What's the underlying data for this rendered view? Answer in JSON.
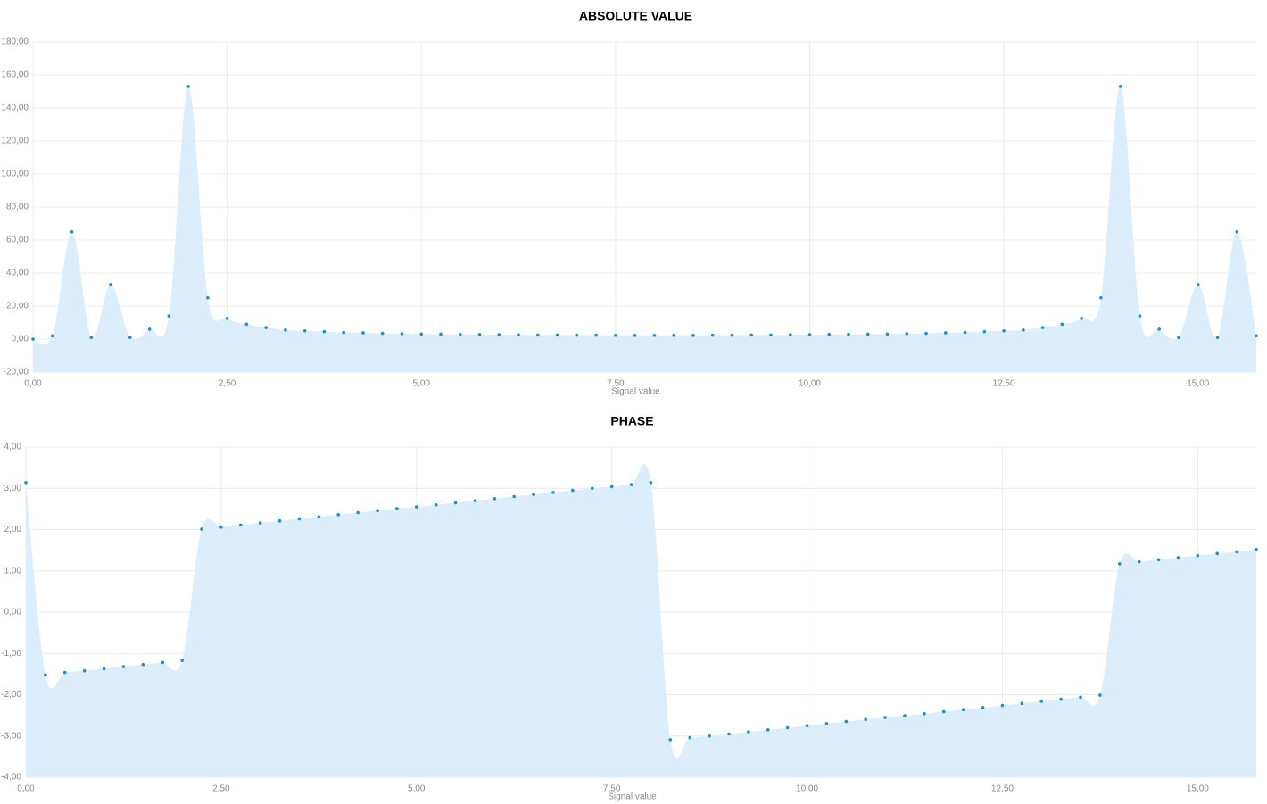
{
  "chart_data": [
    {
      "type": "area",
      "title": "ABSOLUTE VALUE",
      "xlabel": "Signal value",
      "x": [
        0,
        0.25,
        0.5,
        0.75,
        1,
        1.25,
        1.5,
        1.75,
        2,
        2.25,
        2.5,
        2.75,
        3,
        3.25,
        3.5,
        3.75,
        4,
        4.25,
        4.5,
        4.75,
        5,
        5.25,
        5.5,
        5.75,
        6,
        6.25,
        6.5,
        6.75,
        7,
        7.25,
        7.5,
        7.75,
        8,
        8.25,
        8.5,
        8.75,
        9,
        9.25,
        9.5,
        9.75,
        10,
        10.25,
        10.5,
        10.75,
        11,
        11.25,
        11.5,
        11.75,
        12,
        12.25,
        12.5,
        12.75,
        13,
        13.25,
        13.5,
        13.75,
        14,
        14.25,
        14.5,
        14.75,
        15,
        15.25,
        15.5,
        15.75
      ],
      "values": [
        0,
        2,
        65,
        1,
        33,
        1,
        6,
        14,
        153,
        25,
        12.5,
        9,
        7,
        5.5,
        5,
        4.5,
        4,
        3.8,
        3.5,
        3.3,
        3.1,
        3,
        2.9,
        2.8,
        2.7,
        2.6,
        2.5,
        2.5,
        2.4,
        2.4,
        2.3,
        2.3,
        2.3,
        2.3,
        2.3,
        2.4,
        2.4,
        2.5,
        2.5,
        2.6,
        2.7,
        2.8,
        2.9,
        3,
        3.1,
        3.3,
        3.5,
        3.8,
        4,
        4.5,
        5,
        5.5,
        7,
        9,
        12.5,
        25,
        153,
        14,
        6,
        1,
        33,
        1,
        65,
        2
      ],
      "color": "#1a8fd6",
      "fill": "#dcedfc",
      "grid": true,
      "xlim": [
        0,
        15.75
      ],
      "xticks": [
        {
          "value": 0,
          "label": "0,00"
        },
        {
          "value": 2.5,
          "label": "2,50"
        },
        {
          "value": 5,
          "label": "5,00"
        },
        {
          "value": 7.5,
          "label": "7,50"
        },
        {
          "value": 10,
          "label": "10,00"
        },
        {
          "value": 12.5,
          "label": "12,50"
        },
        {
          "value": 15,
          "label": "15,00"
        }
      ],
      "ylim": [
        -20,
        180
      ],
      "yticks": [
        {
          "value": -20,
          "label": "-20,00"
        },
        {
          "value": 0,
          "label": "0,00"
        },
        {
          "value": 20,
          "label": "20,00"
        },
        {
          "value": 40,
          "label": "40,00"
        },
        {
          "value": 60,
          "label": "60,00"
        },
        {
          "value": 80,
          "label": "80,00"
        },
        {
          "value": 100,
          "label": "100,00"
        },
        {
          "value": 120,
          "label": "120,00"
        },
        {
          "value": 140,
          "label": "140,00"
        },
        {
          "value": 160,
          "label": "160,00"
        },
        {
          "value": 180,
          "label": "180,00"
        }
      ]
    },
    {
      "type": "area",
      "title": "PHASE",
      "xlabel": "Signal value",
      "x": [
        0,
        0.25,
        0.5,
        0.75,
        1,
        1.25,
        1.5,
        1.75,
        2,
        2.25,
        2.5,
        2.75,
        3,
        3.25,
        3.5,
        3.75,
        4,
        4.25,
        4.5,
        4.75,
        5,
        5.25,
        5.5,
        5.75,
        6,
        6.25,
        6.5,
        6.75,
        7,
        7.25,
        7.5,
        7.75,
        8,
        8.25,
        8.5,
        8.75,
        9,
        9.25,
        9.5,
        9.75,
        10,
        10.25,
        10.5,
        10.75,
        11,
        11.25,
        11.5,
        11.75,
        12,
        12.25,
        12.5,
        12.75,
        13,
        13.25,
        13.5,
        13.75,
        14,
        14.25,
        14.5,
        14.75,
        15,
        15.25,
        15.5,
        15.75
      ],
      "values": [
        3.14,
        -1.52,
        -1.46,
        -1.42,
        -1.37,
        -1.32,
        -1.27,
        -1.22,
        -1.17,
        2.01,
        2.06,
        2.11,
        2.16,
        2.21,
        2.26,
        2.31,
        2.36,
        2.41,
        2.46,
        2.51,
        2.55,
        2.6,
        2.65,
        2.7,
        2.75,
        2.8,
        2.85,
        2.9,
        2.95,
        3,
        3.04,
        3.09,
        3.14,
        -3.09,
        -3.04,
        -3,
        -2.95,
        -2.9,
        -2.85,
        -2.8,
        -2.75,
        -2.7,
        -2.65,
        -2.6,
        -2.55,
        -2.51,
        -2.46,
        -2.41,
        -2.36,
        -2.31,
        -2.26,
        -2.21,
        -2.16,
        -2.11,
        -2.06,
        -2.01,
        1.17,
        1.22,
        1.27,
        1.32,
        1.37,
        1.42,
        1.46,
        1.52
      ],
      "color": "#1a8fd6",
      "fill": "#dcedfc",
      "grid": true,
      "xlim": [
        0,
        15.75
      ],
      "xticks": [
        {
          "value": 0,
          "label": "0,00"
        },
        {
          "value": 2.5,
          "label": "2,50"
        },
        {
          "value": 5,
          "label": "5,00"
        },
        {
          "value": 7.5,
          "label": "7,50"
        },
        {
          "value": 10,
          "label": "10,00"
        },
        {
          "value": 12.5,
          "label": "12,50"
        },
        {
          "value": 15,
          "label": "15,00"
        }
      ],
      "ylim": [
        -4,
        4
      ],
      "yticks": [
        {
          "value": -4,
          "label": "-4,00"
        },
        {
          "value": -3,
          "label": "-3,00"
        },
        {
          "value": -2,
          "label": "-2,00"
        },
        {
          "value": -1,
          "label": "-1,00"
        },
        {
          "value": 0,
          "label": "0,00"
        },
        {
          "value": 1,
          "label": "1,00"
        },
        {
          "value": 2,
          "label": "2,00"
        },
        {
          "value": 3,
          "label": "3,00"
        },
        {
          "value": 4,
          "label": "4,00"
        }
      ]
    }
  ]
}
